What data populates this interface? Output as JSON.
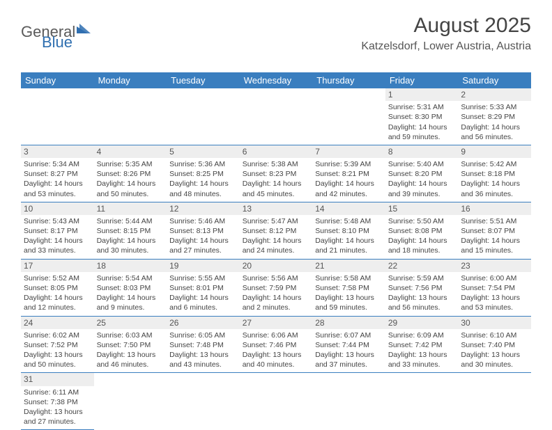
{
  "brand": {
    "part1": "General",
    "part2": "Blue"
  },
  "header": {
    "title": "August 2025",
    "subtitle": "Katzelsdorf, Lower Austria, Austria"
  },
  "colors": {
    "header_bg": "#3a7ebf",
    "header_text": "#ffffff",
    "daynum_bg": "#eeeeee",
    "border": "#3a7ebf",
    "text": "#444444"
  },
  "weekdays": [
    "Sunday",
    "Monday",
    "Tuesday",
    "Wednesday",
    "Thursday",
    "Friday",
    "Saturday"
  ],
  "weeks": [
    [
      {
        "n": "",
        "sr": "",
        "ss": "",
        "dl1": "",
        "dl2": ""
      },
      {
        "n": "",
        "sr": "",
        "ss": "",
        "dl1": "",
        "dl2": ""
      },
      {
        "n": "",
        "sr": "",
        "ss": "",
        "dl1": "",
        "dl2": ""
      },
      {
        "n": "",
        "sr": "",
        "ss": "",
        "dl1": "",
        "dl2": ""
      },
      {
        "n": "",
        "sr": "",
        "ss": "",
        "dl1": "",
        "dl2": ""
      },
      {
        "n": "1",
        "sr": "Sunrise: 5:31 AM",
        "ss": "Sunset: 8:30 PM",
        "dl1": "Daylight: 14 hours",
        "dl2": "and 59 minutes."
      },
      {
        "n": "2",
        "sr": "Sunrise: 5:33 AM",
        "ss": "Sunset: 8:29 PM",
        "dl1": "Daylight: 14 hours",
        "dl2": "and 56 minutes."
      }
    ],
    [
      {
        "n": "3",
        "sr": "Sunrise: 5:34 AM",
        "ss": "Sunset: 8:27 PM",
        "dl1": "Daylight: 14 hours",
        "dl2": "and 53 minutes."
      },
      {
        "n": "4",
        "sr": "Sunrise: 5:35 AM",
        "ss": "Sunset: 8:26 PM",
        "dl1": "Daylight: 14 hours",
        "dl2": "and 50 minutes."
      },
      {
        "n": "5",
        "sr": "Sunrise: 5:36 AM",
        "ss": "Sunset: 8:25 PM",
        "dl1": "Daylight: 14 hours",
        "dl2": "and 48 minutes."
      },
      {
        "n": "6",
        "sr": "Sunrise: 5:38 AM",
        "ss": "Sunset: 8:23 PM",
        "dl1": "Daylight: 14 hours",
        "dl2": "and 45 minutes."
      },
      {
        "n": "7",
        "sr": "Sunrise: 5:39 AM",
        "ss": "Sunset: 8:21 PM",
        "dl1": "Daylight: 14 hours",
        "dl2": "and 42 minutes."
      },
      {
        "n": "8",
        "sr": "Sunrise: 5:40 AM",
        "ss": "Sunset: 8:20 PM",
        "dl1": "Daylight: 14 hours",
        "dl2": "and 39 minutes."
      },
      {
        "n": "9",
        "sr": "Sunrise: 5:42 AM",
        "ss": "Sunset: 8:18 PM",
        "dl1": "Daylight: 14 hours",
        "dl2": "and 36 minutes."
      }
    ],
    [
      {
        "n": "10",
        "sr": "Sunrise: 5:43 AM",
        "ss": "Sunset: 8:17 PM",
        "dl1": "Daylight: 14 hours",
        "dl2": "and 33 minutes."
      },
      {
        "n": "11",
        "sr": "Sunrise: 5:44 AM",
        "ss": "Sunset: 8:15 PM",
        "dl1": "Daylight: 14 hours",
        "dl2": "and 30 minutes."
      },
      {
        "n": "12",
        "sr": "Sunrise: 5:46 AM",
        "ss": "Sunset: 8:13 PM",
        "dl1": "Daylight: 14 hours",
        "dl2": "and 27 minutes."
      },
      {
        "n": "13",
        "sr": "Sunrise: 5:47 AM",
        "ss": "Sunset: 8:12 PM",
        "dl1": "Daylight: 14 hours",
        "dl2": "and 24 minutes."
      },
      {
        "n": "14",
        "sr": "Sunrise: 5:48 AM",
        "ss": "Sunset: 8:10 PM",
        "dl1": "Daylight: 14 hours",
        "dl2": "and 21 minutes."
      },
      {
        "n": "15",
        "sr": "Sunrise: 5:50 AM",
        "ss": "Sunset: 8:08 PM",
        "dl1": "Daylight: 14 hours",
        "dl2": "and 18 minutes."
      },
      {
        "n": "16",
        "sr": "Sunrise: 5:51 AM",
        "ss": "Sunset: 8:07 PM",
        "dl1": "Daylight: 14 hours",
        "dl2": "and 15 minutes."
      }
    ],
    [
      {
        "n": "17",
        "sr": "Sunrise: 5:52 AM",
        "ss": "Sunset: 8:05 PM",
        "dl1": "Daylight: 14 hours",
        "dl2": "and 12 minutes."
      },
      {
        "n": "18",
        "sr": "Sunrise: 5:54 AM",
        "ss": "Sunset: 8:03 PM",
        "dl1": "Daylight: 14 hours",
        "dl2": "and 9 minutes."
      },
      {
        "n": "19",
        "sr": "Sunrise: 5:55 AM",
        "ss": "Sunset: 8:01 PM",
        "dl1": "Daylight: 14 hours",
        "dl2": "and 6 minutes."
      },
      {
        "n": "20",
        "sr": "Sunrise: 5:56 AM",
        "ss": "Sunset: 7:59 PM",
        "dl1": "Daylight: 14 hours",
        "dl2": "and 2 minutes."
      },
      {
        "n": "21",
        "sr": "Sunrise: 5:58 AM",
        "ss": "Sunset: 7:58 PM",
        "dl1": "Daylight: 13 hours",
        "dl2": "and 59 minutes."
      },
      {
        "n": "22",
        "sr": "Sunrise: 5:59 AM",
        "ss": "Sunset: 7:56 PM",
        "dl1": "Daylight: 13 hours",
        "dl2": "and 56 minutes."
      },
      {
        "n": "23",
        "sr": "Sunrise: 6:00 AM",
        "ss": "Sunset: 7:54 PM",
        "dl1": "Daylight: 13 hours",
        "dl2": "and 53 minutes."
      }
    ],
    [
      {
        "n": "24",
        "sr": "Sunrise: 6:02 AM",
        "ss": "Sunset: 7:52 PM",
        "dl1": "Daylight: 13 hours",
        "dl2": "and 50 minutes."
      },
      {
        "n": "25",
        "sr": "Sunrise: 6:03 AM",
        "ss": "Sunset: 7:50 PM",
        "dl1": "Daylight: 13 hours",
        "dl2": "and 46 minutes."
      },
      {
        "n": "26",
        "sr": "Sunrise: 6:05 AM",
        "ss": "Sunset: 7:48 PM",
        "dl1": "Daylight: 13 hours",
        "dl2": "and 43 minutes."
      },
      {
        "n": "27",
        "sr": "Sunrise: 6:06 AM",
        "ss": "Sunset: 7:46 PM",
        "dl1": "Daylight: 13 hours",
        "dl2": "and 40 minutes."
      },
      {
        "n": "28",
        "sr": "Sunrise: 6:07 AM",
        "ss": "Sunset: 7:44 PM",
        "dl1": "Daylight: 13 hours",
        "dl2": "and 37 minutes."
      },
      {
        "n": "29",
        "sr": "Sunrise: 6:09 AM",
        "ss": "Sunset: 7:42 PM",
        "dl1": "Daylight: 13 hours",
        "dl2": "and 33 minutes."
      },
      {
        "n": "30",
        "sr": "Sunrise: 6:10 AM",
        "ss": "Sunset: 7:40 PM",
        "dl1": "Daylight: 13 hours",
        "dl2": "and 30 minutes."
      }
    ],
    [
      {
        "n": "31",
        "sr": "Sunrise: 6:11 AM",
        "ss": "Sunset: 7:38 PM",
        "dl1": "Daylight: 13 hours",
        "dl2": "and 27 minutes."
      },
      {
        "n": "",
        "sr": "",
        "ss": "",
        "dl1": "",
        "dl2": ""
      },
      {
        "n": "",
        "sr": "",
        "ss": "",
        "dl1": "",
        "dl2": ""
      },
      {
        "n": "",
        "sr": "",
        "ss": "",
        "dl1": "",
        "dl2": ""
      },
      {
        "n": "",
        "sr": "",
        "ss": "",
        "dl1": "",
        "dl2": ""
      },
      {
        "n": "",
        "sr": "",
        "ss": "",
        "dl1": "",
        "dl2": ""
      },
      {
        "n": "",
        "sr": "",
        "ss": "",
        "dl1": "",
        "dl2": ""
      }
    ]
  ]
}
